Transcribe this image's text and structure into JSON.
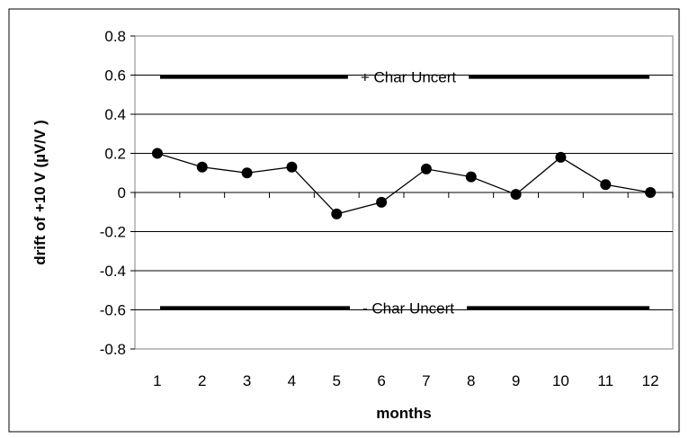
{
  "chart_data": {
    "type": "line",
    "xlabel": "months",
    "ylabel": "drift of +10 V (µV/V )",
    "categories": [
      "1",
      "2",
      "3",
      "4",
      "5",
      "6",
      "7",
      "8",
      "9",
      "10",
      "11",
      "12"
    ],
    "y_ticks": [
      "0.8",
      "0.6",
      "0.4",
      "0.2",
      "0",
      "-0.2",
      "-0.4",
      "-0.6",
      "-0.8"
    ],
    "ylim": [
      -0.8,
      0.8
    ],
    "grid": true,
    "legend": "none",
    "series": [
      {
        "values": [
          0.2,
          0.13,
          0.1,
          0.13,
          -0.11,
          -0.05,
          0.12,
          0.08,
          -0.01,
          0.18,
          0.04,
          0.0
        ],
        "color": "#000000"
      }
    ],
    "reference_lines": [
      {
        "label": "+ Char Uncert",
        "value": 0.59
      },
      {
        "label": "- Char Uncert",
        "value": -0.59
      }
    ]
  }
}
